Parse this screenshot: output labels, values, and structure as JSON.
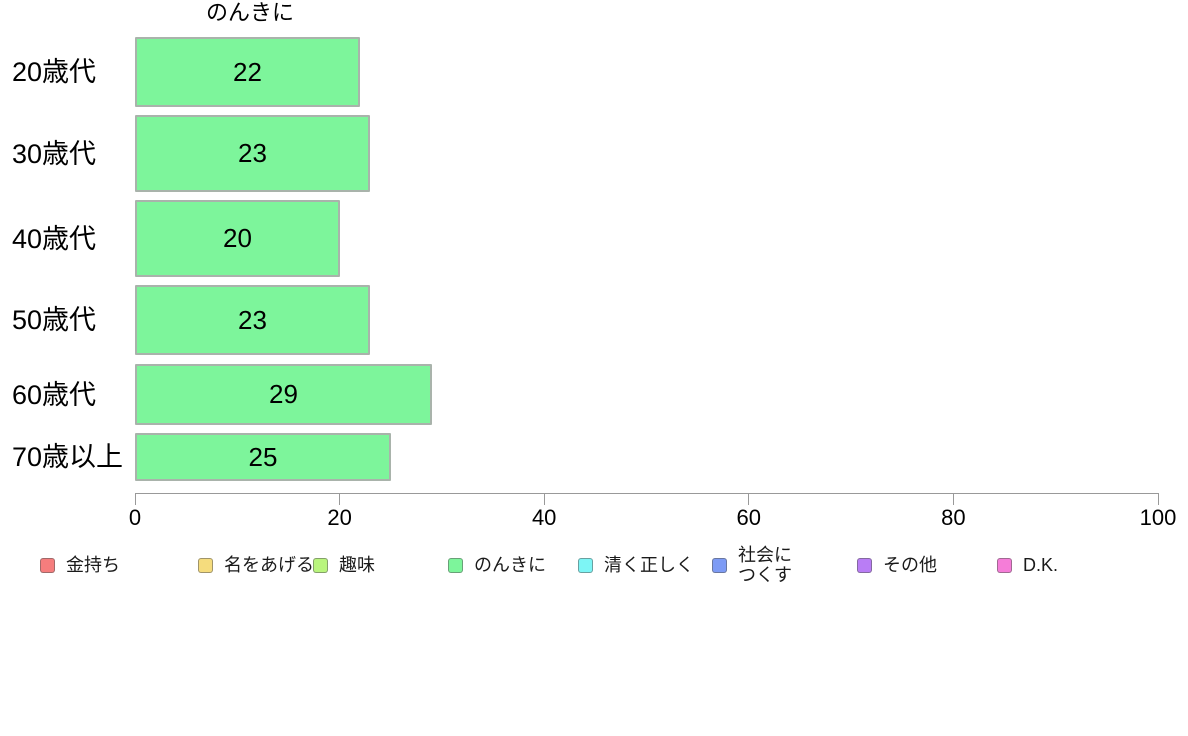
{
  "chart_data": {
    "type": "bar",
    "orientation": "horizontal",
    "title": "のんきに",
    "categories": [
      "20歳代",
      "30歳代",
      "40歳代",
      "50歳代",
      "60歳代",
      "70歳以上"
    ],
    "values": [
      22,
      23,
      20,
      23,
      29,
      25
    ],
    "xlabel": "",
    "ylabel": "",
    "xlim": [
      0,
      100
    ],
    "x_ticks": [
      0,
      20,
      40,
      60,
      80,
      100
    ],
    "grid": false,
    "bar_color": "#7DF59B",
    "bar_border_color": "#a9b3ab",
    "axis_color": "#999999",
    "legend_position": "bottom",
    "legend": [
      {
        "label": "金持ち",
        "color": "#F57D7D"
      },
      {
        "label": "名をあげる",
        "color": "#F5DC7D"
      },
      {
        "label": "趣味",
        "color": "#B9F57D"
      },
      {
        "label": "のんきに",
        "color": "#7DF59B"
      },
      {
        "label": "清く正しく",
        "color": "#7DF5F5"
      },
      {
        "label": "社会に\nつくす",
        "color": "#7D9BF5"
      },
      {
        "label": "その他",
        "color": "#B97DF5"
      },
      {
        "label": "D.K.",
        "color": "#F57DD8"
      }
    ]
  }
}
